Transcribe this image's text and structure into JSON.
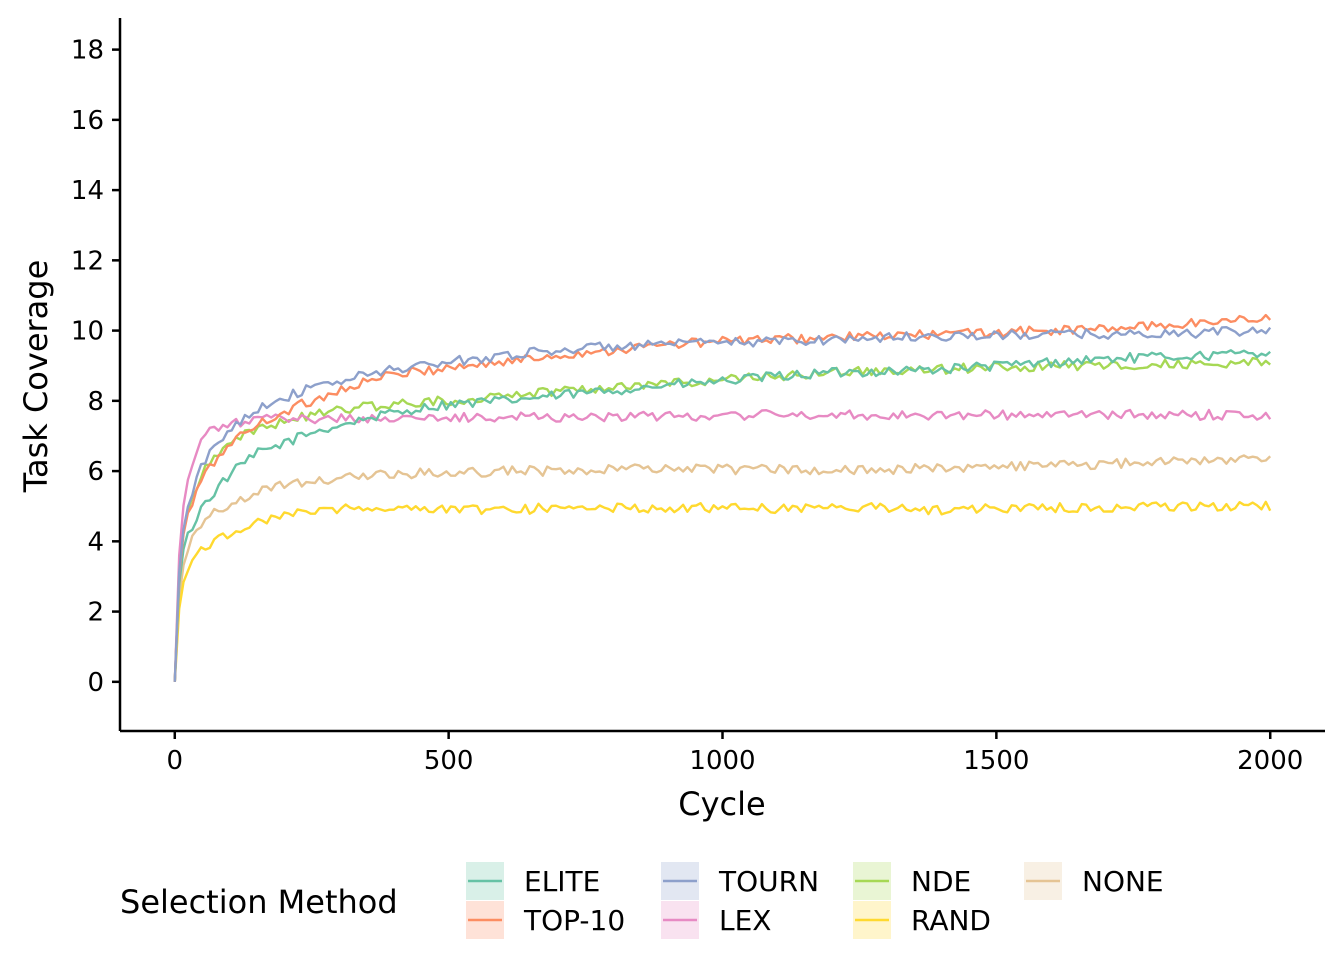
{
  "chart_data": {
    "type": "line",
    "xlabel": "Cycle",
    "ylabel": "Task Coverage",
    "xlim": [
      -100,
      2100
    ],
    "ylim": [
      -1.4,
      18.9
    ],
    "x_ticks": [
      0,
      500,
      1000,
      1500,
      2000
    ],
    "y_ticks": [
      0,
      2,
      4,
      6,
      8,
      10,
      12,
      14,
      16,
      18
    ],
    "grid": false,
    "legend": {
      "title": "Selection Method",
      "position": "bottom"
    },
    "x": [
      0,
      10,
      25,
      50,
      100,
      150,
      200,
      250,
      300,
      350,
      400,
      450,
      500,
      600,
      700,
      800,
      900,
      1000,
      1100,
      1200,
      1300,
      1400,
      1500,
      1600,
      1700,
      1800,
      1900,
      2000
    ],
    "series": [
      {
        "name": "ELITE",
        "color": "#66c2a5",
        "values": [
          0.0,
          3.5,
          4.2,
          5.0,
          5.9,
          6.5,
          6.8,
          7.1,
          7.3,
          7.5,
          7.65,
          7.8,
          7.9,
          8.0,
          8.15,
          8.3,
          8.45,
          8.55,
          8.7,
          8.8,
          8.85,
          8.9,
          9.0,
          9.1,
          9.2,
          9.25,
          9.3,
          9.4
        ]
      },
      {
        "name": "TOP-10",
        "color": "#fc8d62",
        "values": [
          0.0,
          3.8,
          4.8,
          5.8,
          6.8,
          7.3,
          7.7,
          8.0,
          8.3,
          8.55,
          8.75,
          8.85,
          8.95,
          9.1,
          9.3,
          9.45,
          9.6,
          9.7,
          9.75,
          9.8,
          9.85,
          9.9,
          9.95,
          10.0,
          10.05,
          10.15,
          10.25,
          10.4
        ]
      },
      {
        "name": "TOURN",
        "color": "#8da0cb",
        "values": [
          0.0,
          3.9,
          5.0,
          6.2,
          7.2,
          7.8,
          8.1,
          8.35,
          8.55,
          8.75,
          8.9,
          9.0,
          9.1,
          9.3,
          9.45,
          9.55,
          9.6,
          9.65,
          9.7,
          9.75,
          9.8,
          9.85,
          9.85,
          9.9,
          9.9,
          9.9,
          9.95,
          10.0
        ]
      },
      {
        "name": "LEX",
        "color": "#e78ac3",
        "values": [
          0.0,
          4.5,
          5.8,
          7.0,
          7.35,
          7.45,
          7.5,
          7.5,
          7.5,
          7.5,
          7.5,
          7.5,
          7.5,
          7.55,
          7.55,
          7.55,
          7.55,
          7.6,
          7.6,
          7.6,
          7.6,
          7.6,
          7.6,
          7.6,
          7.6,
          7.6,
          7.6,
          7.6
        ]
      },
      {
        "name": "NDE",
        "color": "#a6d854",
        "values": [
          0.0,
          3.9,
          4.9,
          6.0,
          6.9,
          7.2,
          7.4,
          7.6,
          7.75,
          7.85,
          7.9,
          7.95,
          8.0,
          8.15,
          8.3,
          8.4,
          8.5,
          8.6,
          8.7,
          8.8,
          8.85,
          8.9,
          8.95,
          9.0,
          9.0,
          9.05,
          9.05,
          9.1
        ]
      },
      {
        "name": "RAND",
        "color": "#ffd92f",
        "values": [
          0.0,
          2.6,
          3.2,
          3.8,
          4.25,
          4.55,
          4.75,
          4.85,
          4.95,
          4.95,
          4.95,
          4.95,
          4.9,
          4.9,
          4.95,
          4.95,
          4.95,
          4.95,
          4.95,
          4.95,
          4.95,
          4.9,
          4.95,
          4.95,
          4.95,
          5.0,
          5.0,
          5.0
        ]
      },
      {
        "name": "NONE",
        "color": "#e5c494",
        "values": [
          0.0,
          3.0,
          3.8,
          4.6,
          5.1,
          5.4,
          5.6,
          5.7,
          5.8,
          5.85,
          5.9,
          5.95,
          5.95,
          6.0,
          6.0,
          6.05,
          6.05,
          6.05,
          6.05,
          6.05,
          6.05,
          6.1,
          6.1,
          6.15,
          6.2,
          6.25,
          6.3,
          6.4
        ]
      }
    ]
  }
}
